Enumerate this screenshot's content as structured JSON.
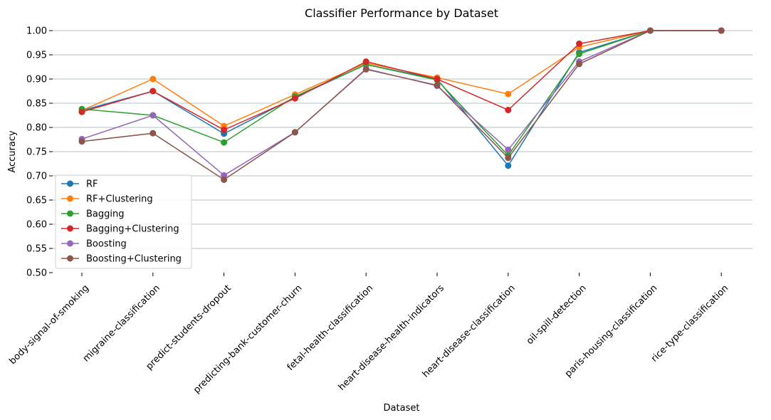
{
  "chart_data": {
    "type": "line",
    "title": "Classifier Performance by Dataset",
    "xlabel": "Dataset",
    "ylabel": "Accuracy",
    "ylim": [
      0.5,
      1.0
    ],
    "yticks": [
      "0.50",
      "0.55",
      "0.60",
      "0.65",
      "0.70",
      "0.75",
      "0.80",
      "0.85",
      "0.90",
      "0.95",
      "1.00"
    ],
    "grid": "horizontal",
    "legend_position": "lower-left",
    "categories": [
      "body-signal-of-smoking",
      "migraine-classification",
      "predict-students-dropout",
      "predicting-bank-customer-churn",
      "fetal-health-classification",
      "heart-disease-health-indicators",
      "heart-disease-classification",
      "oil-spill-detection",
      "paris-housing-classification",
      "rice-type-classification"
    ],
    "series": [
      {
        "name": "RF",
        "color": "#1f77b4",
        "values": [
          0.835,
          0.875,
          0.787,
          0.862,
          0.93,
          0.9,
          0.721,
          0.955,
          1.0,
          1.0
        ]
      },
      {
        "name": "RF+Clustering",
        "color": "#ff7f0e",
        "values": [
          0.835,
          0.9,
          0.803,
          0.868,
          0.933,
          0.903,
          0.869,
          0.966,
          1.0,
          1.0
        ]
      },
      {
        "name": "Bagging",
        "color": "#2ca02c",
        "values": [
          0.838,
          0.825,
          0.769,
          0.864,
          0.93,
          0.898,
          0.742,
          0.952,
          1.0,
          1.0
        ]
      },
      {
        "name": "Bagging+Clustering",
        "color": "#d62728",
        "values": [
          0.832,
          0.875,
          0.795,
          0.86,
          0.936,
          0.9,
          0.836,
          0.973,
          1.0,
          1.0
        ]
      },
      {
        "name": "Boosting",
        "color": "#9467bd",
        "values": [
          0.776,
          0.825,
          0.701,
          0.79,
          0.921,
          0.886,
          0.754,
          0.936,
          1.0,
          1.0
        ]
      },
      {
        "name": "Boosting+Clustering",
        "color": "#8c564b",
        "values": [
          0.771,
          0.788,
          0.692,
          0.79,
          0.92,
          0.887,
          0.737,
          0.931,
          1.0,
          1.0
        ]
      }
    ]
  }
}
